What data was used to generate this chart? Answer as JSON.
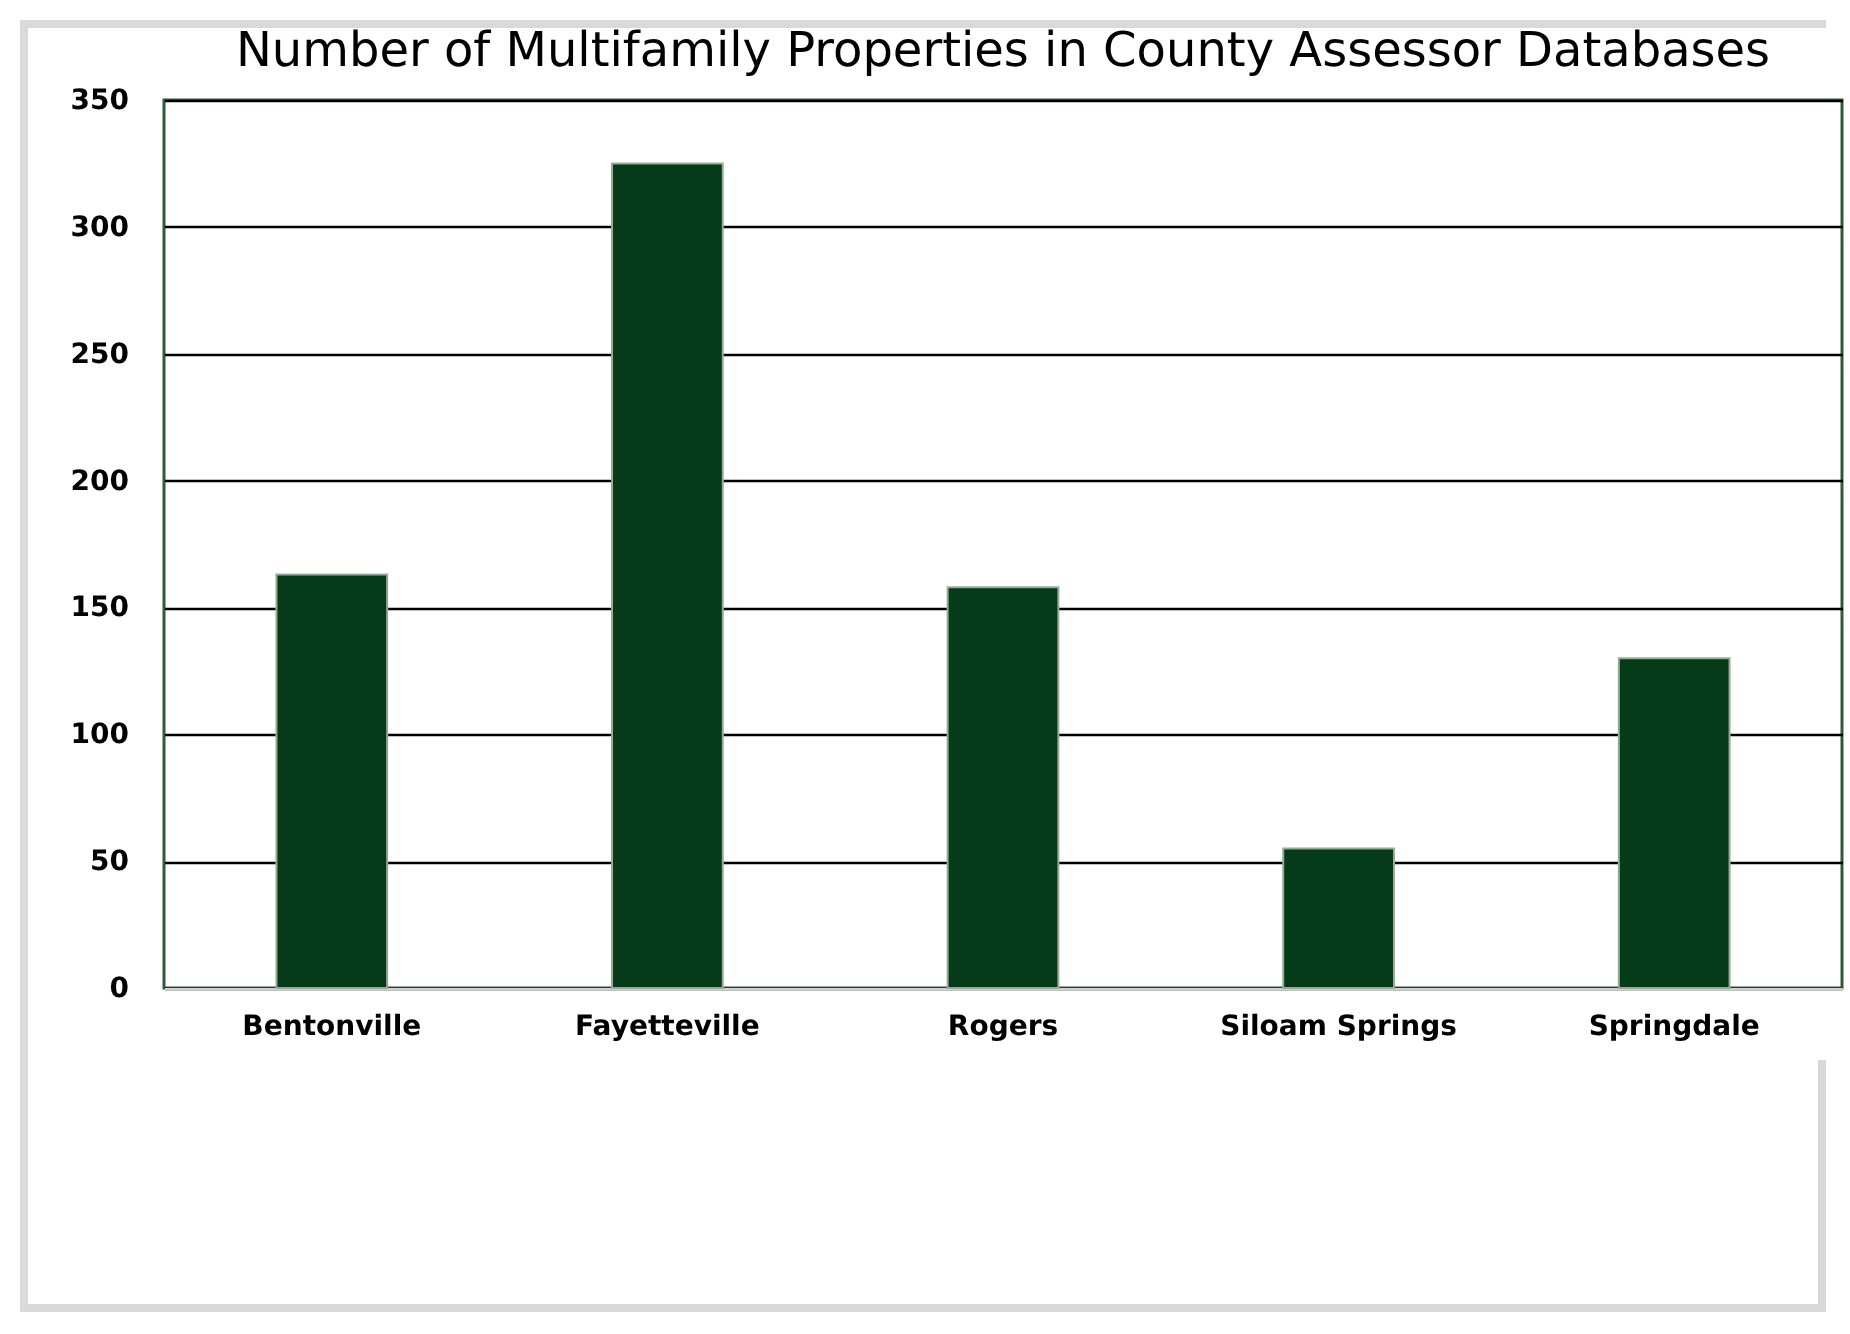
{
  "chart_data": {
    "type": "bar",
    "title": "Number of Multifamily Properties in County Assessor Databases",
    "categories": [
      "Bentonville",
      "Fayetteville",
      "Rogers",
      "Siloam Springs",
      "Springdale"
    ],
    "values": [
      163,
      325,
      158,
      55,
      130
    ],
    "color": "#063b19",
    "ylim": [
      0,
      350
    ],
    "yticks": [
      0,
      50,
      100,
      150,
      200,
      250,
      300,
      350
    ],
    "grid": "y"
  }
}
